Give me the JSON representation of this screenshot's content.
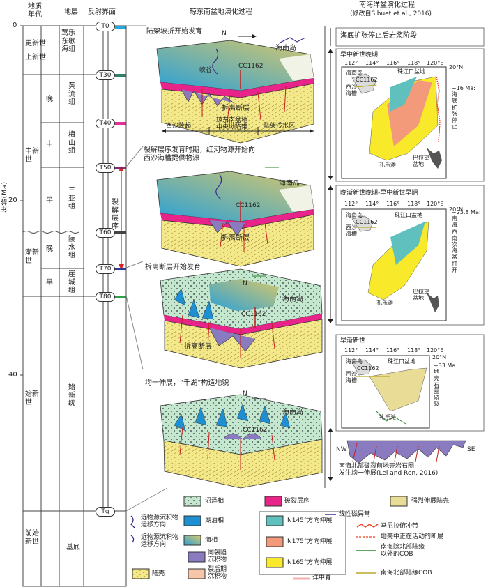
{
  "header": {
    "col_age": "地质\n年代",
    "col_stratum": "地层",
    "col_reflector": "反射界面",
    "col_evolution": "琼东南盆地演化过程",
    "col_sea_line1": "南海洋盆演化过程",
    "col_sea_line2": "(修改自Sibuet et al., 2016)"
  },
  "age_axis": {
    "label": "年龄(Ma)",
    "ticks": [
      "0",
      "20",
      "40"
    ]
  },
  "epochs": {
    "pleistocene": "更新世",
    "pliocene": "上新世",
    "miocene": "中新世",
    "oligocene": "渐新世",
    "eocene": "始新世",
    "pre_eocene": "前始新世",
    "late": "晚",
    "middle": "中",
    "early": "早"
  },
  "formations": {
    "yinggehai": "莺乐东歌海组",
    "huangliu": "黄流组",
    "meishan": "梅山组",
    "sanya": "三亚组",
    "lingshui": "陵水组",
    "yacheng": "崖城组",
    "eocene_series": "始新统",
    "basement": "基底"
  },
  "reflectors": [
    "T0",
    "T30",
    "T40",
    "T50",
    "T60",
    "T70",
    "T80",
    "Tg"
  ],
  "rift_sequence": "裂解层序",
  "panels": {
    "p1_title": "陆架坡折开始发育",
    "p2_title": "裂解层序发育时期，红河物源开始向\n西沙海槽提供物源",
    "p3_title": "拆离断层开始发育",
    "p4_title": "均一伸展，“千湖”构造地貌",
    "hainan": "海南岛",
    "canyon": "峡谷",
    "cc1162": "CC1162",
    "detachment": "拆离断层",
    "xisha_uplift": "西沙隆起",
    "central_depression": "琼东南盆地\n中央坳陷带",
    "shelf_zone": "陆架浅水区",
    "north": "N"
  },
  "sea_panels": {
    "s1_title": "海底扩张停止后岩浆阶段",
    "s2_title": "早中新世晚期",
    "s2_side": "~16 Ma:\n海\n底\n扩\n张\n停\n止",
    "s3_title": "晚渐新世晚期-早中新世早期",
    "s3_side": "~23.8 Ma:\n南\n海\n西\n南\n次\n海\n盆\n打\n开",
    "s4_title": "早渐新世",
    "s4_side": "~33 Ma:\n地\n壳\n石\n圈\n破\n裂",
    "s5_caption": "南海北部破裂前地壳岩石圈\n发生均一伸展(Lei and Ren, 2016)",
    "hainan_island": "海南岛",
    "prd_basin": "珠江口盆地",
    "xisha_trough": "西沙\n海槽",
    "cc1162": "CC1162",
    "lile_tan": "礼乐滩",
    "palawan": "巴拉望\n盆地",
    "lon": [
      "112°",
      "114°",
      "116°",
      "118°",
      "120°E"
    ],
    "lat_n": "20°N",
    "nw": "NW",
    "se": "SE"
  },
  "legend": {
    "marsh": "沼泽相",
    "lake": "湖泊相",
    "marine": "海相",
    "continental_crust": "陆壳",
    "rift_sequence": "破裂层序",
    "syn_rift": "同裂陷\n沉积物",
    "post_rift": "裂后期\n沉积物",
    "far_source": "远物源沉积物\n运移方向",
    "near_source": "近物源沉积物\n运移方向",
    "mag_anomaly": "线性磁异常",
    "n145": "N145°方向伸展",
    "n175": "N175°方向伸展",
    "n165": "N165°方向伸展",
    "strong_crust": "强烈伸展陆壳",
    "manila": "马尼拉俯冲带",
    "active_fault": "地壳中正在活动的断层",
    "cob_outside": "南海除北部陆缘\n以外的COB",
    "cob_north": "南海北部陆缘COB",
    "ridge": "洋中脊"
  },
  "colors": {
    "marsh": "#b9e3c5",
    "lake": "#1e8fd0",
    "marine_a": "#3aa6d8",
    "marine_b": "#d6c46a",
    "crust": "#f5ea8a",
    "rift": "#e8248a",
    "synrift": "#8a7bc0",
    "postrift": "#f6c6a8",
    "n145": "#5fc0bd",
    "n175": "#f29a7a",
    "n165": "#f8ea2a",
    "strong": "#e8dc96"
  }
}
